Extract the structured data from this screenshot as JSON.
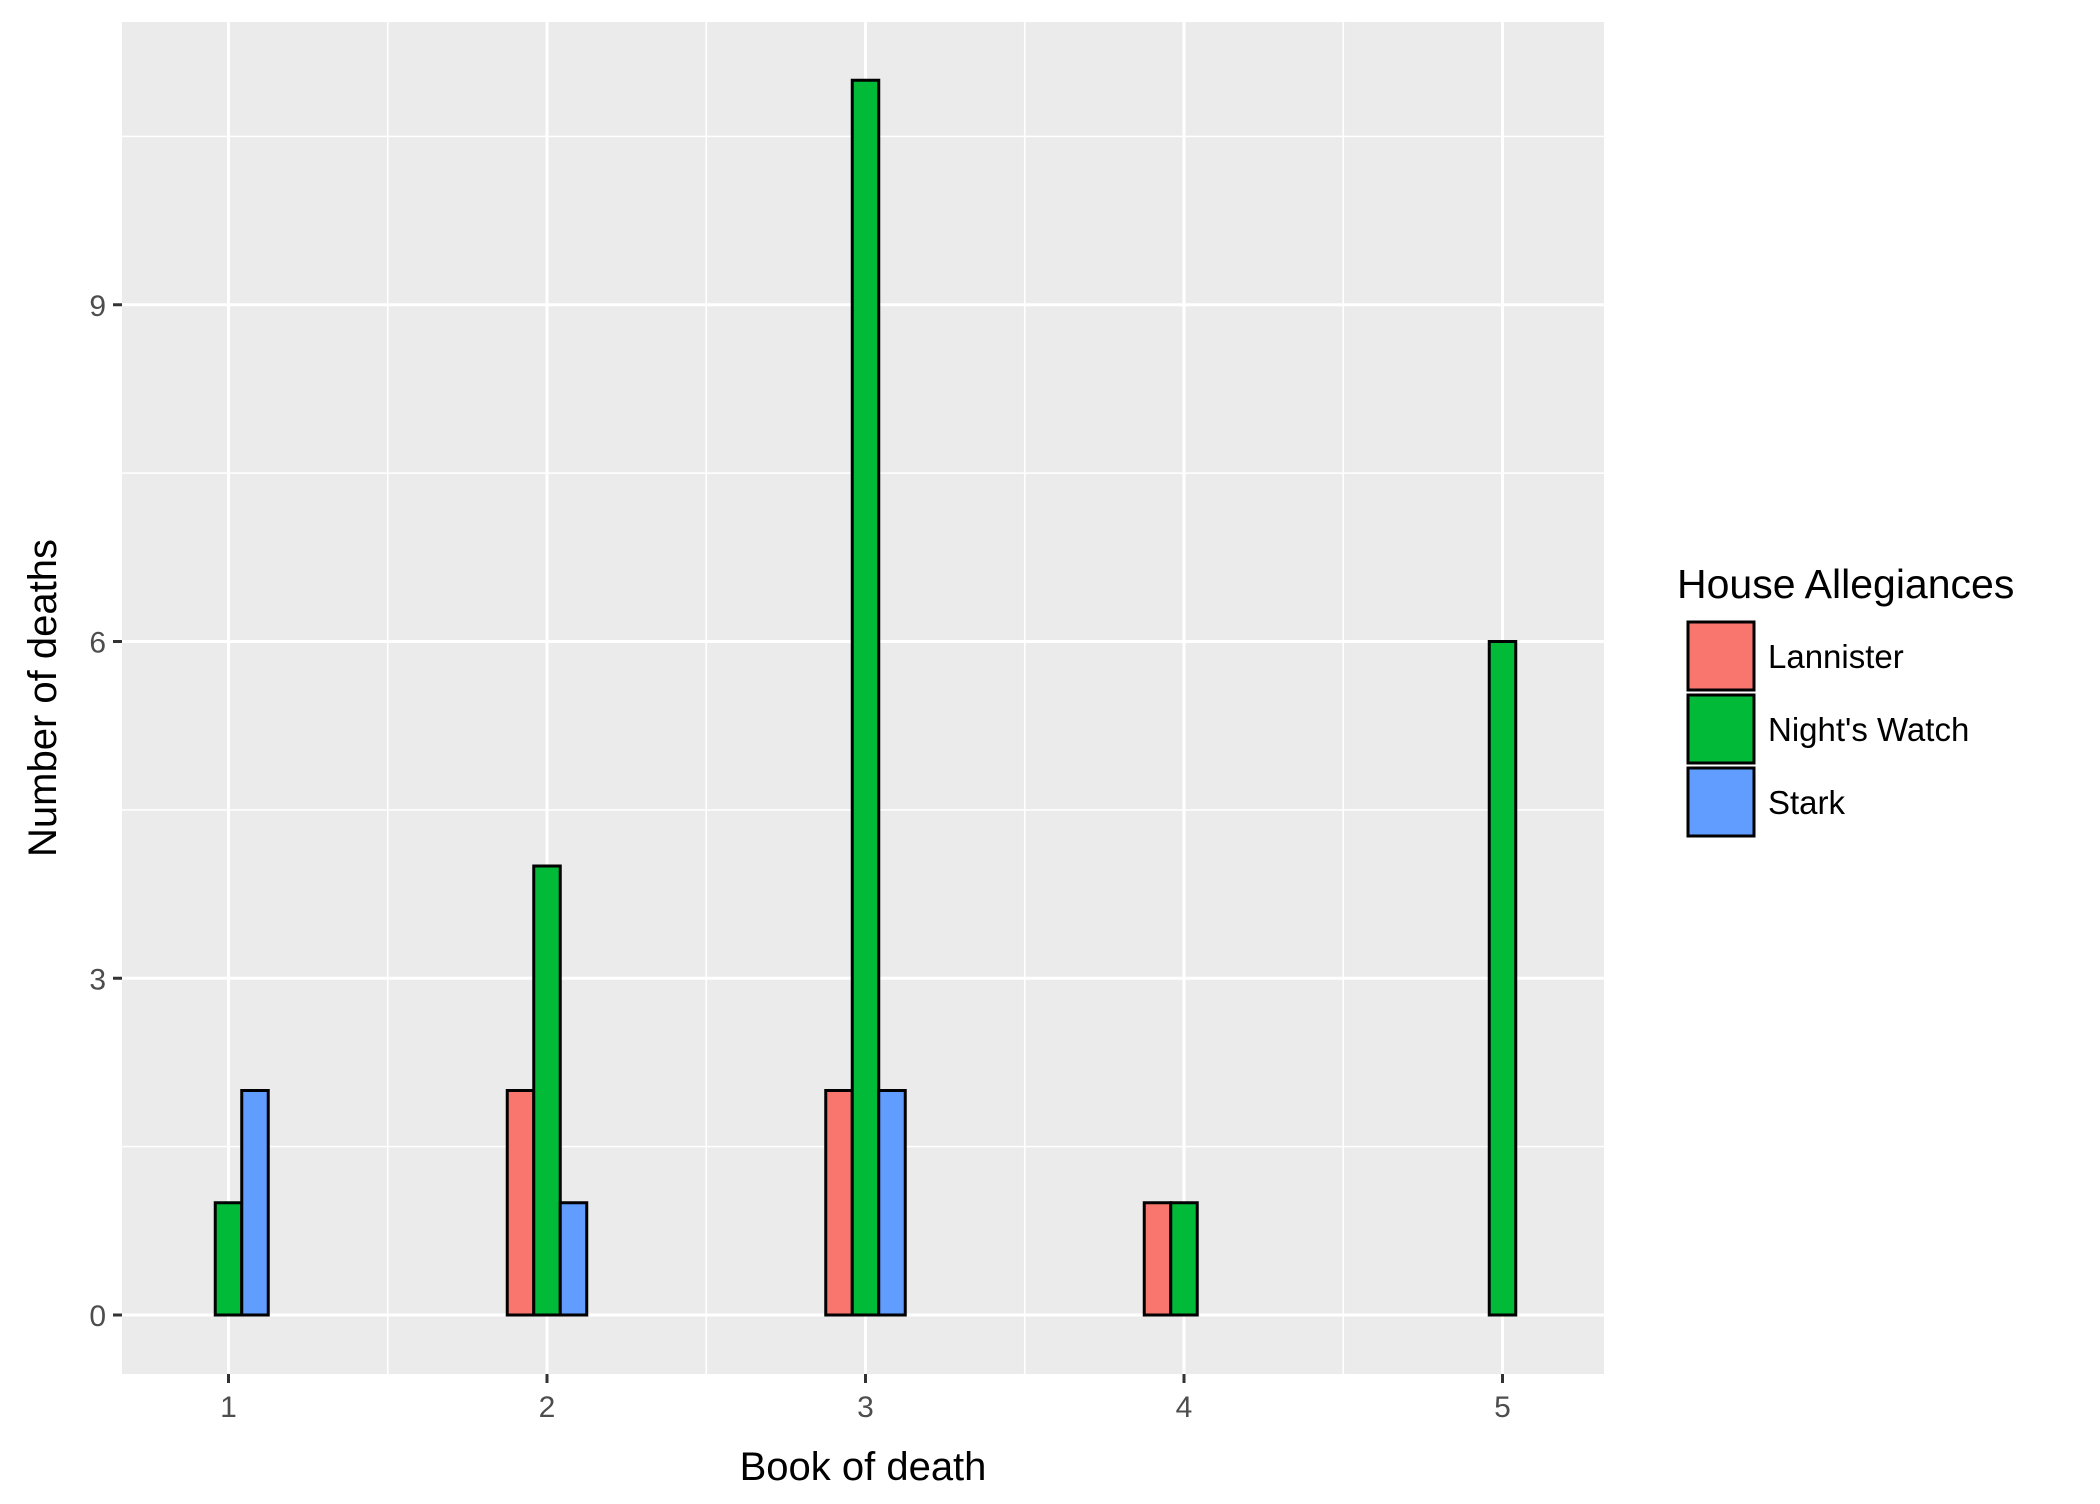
{
  "chart_data": {
    "type": "bar",
    "xlabel": "Book of death",
    "ylabel": "Number of deaths",
    "categories": [
      "1",
      "2",
      "3",
      "4",
      "5"
    ],
    "x_ticks": [
      "1",
      "2",
      "3",
      "4",
      "5"
    ],
    "y_ticks": [
      "0",
      "3",
      "6",
      "9"
    ],
    "y_tick_values": [
      0,
      3,
      6,
      9
    ],
    "ylim": [
      -0.6,
      11.6
    ],
    "grid": true,
    "legend": {
      "title": "House Allegiances",
      "position": "right",
      "entries": [
        "Lannister",
        "Night's Watch",
        "Stark"
      ]
    },
    "series": [
      {
        "name": "Lannister",
        "color": "#F8766D",
        "values": [
          0,
          2,
          2,
          1,
          0
        ]
      },
      {
        "name": "Night's Watch",
        "color": "#00BA38",
        "values": [
          1,
          4,
          11,
          1,
          6
        ]
      },
      {
        "name": "Stark",
        "color": "#619CFF",
        "values": [
          2,
          1,
          2,
          0,
          0
        ]
      }
    ],
    "panel_background": "#EBEBEB",
    "grid_color": "#FFFFFF",
    "bar_outline": "#000000"
  }
}
